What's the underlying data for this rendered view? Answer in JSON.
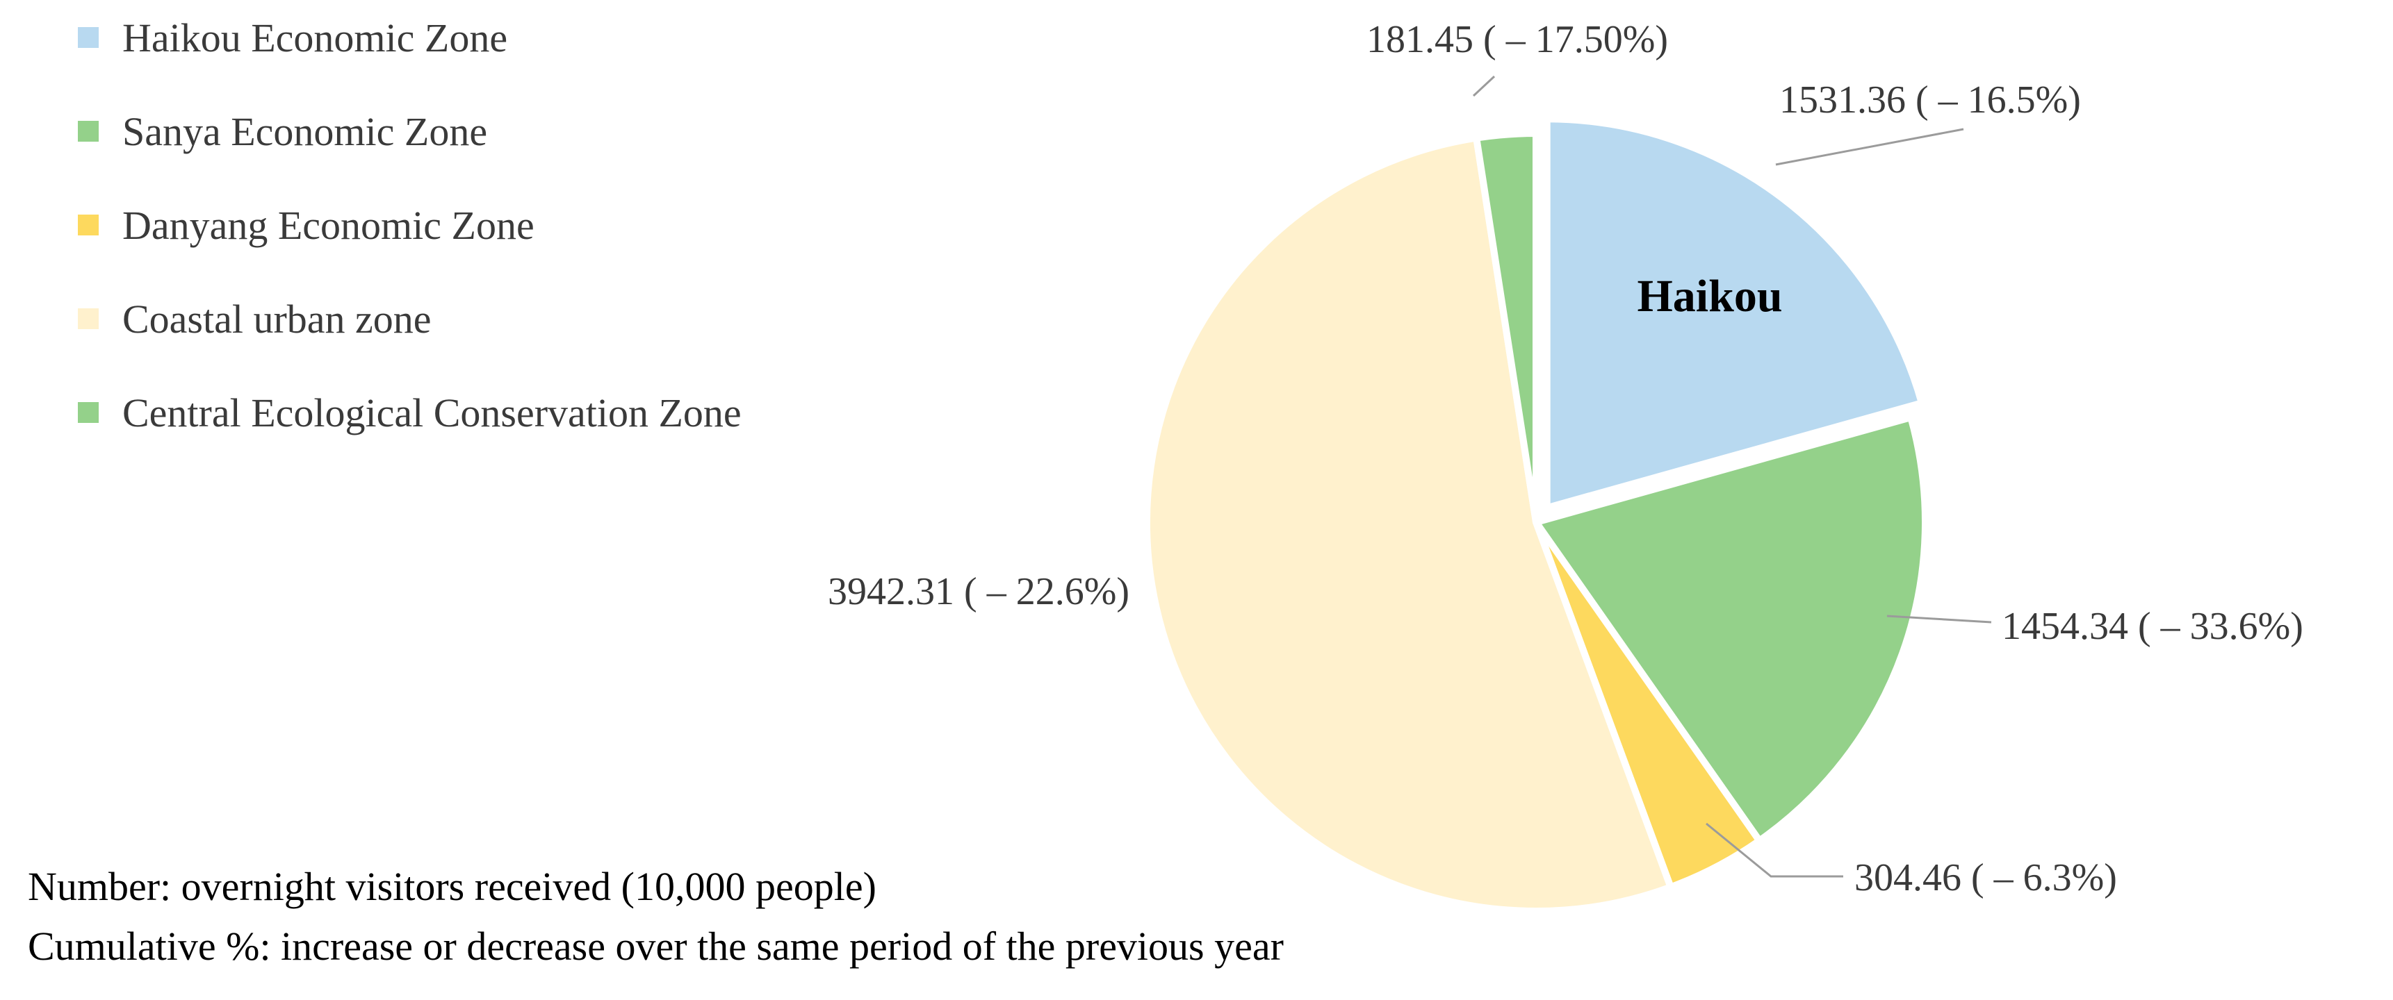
{
  "chart_data": {
    "type": "pie",
    "title": "",
    "inner_label": "Haikou",
    "slices": [
      {
        "name": "Haikou Economic Zone",
        "value": 1531.36,
        "label": "1531.36 ( – 16.5%)",
        "color": "#b8d9f0",
        "exploded": true
      },
      {
        "name": "Sanya Economic Zone",
        "value": 1454.34,
        "label": "1454.34 ( – 33.6%)",
        "color": "#94d18a",
        "exploded": false
      },
      {
        "name": "Danyang Economic Zone",
        "value": 304.46,
        "label": "304.46 ( – 6.3%)",
        "color": "#fdd95e",
        "exploded": false
      },
      {
        "name": "Coastal urban zone",
        "value": 3942.31,
        "label": "3942.31 ( – 22.6%)",
        "color": "#fff1cd",
        "exploded": false
      },
      {
        "name": "Central Ecological Conservation Zone",
        "value": 181.45,
        "label": "181.45 ( – 17.50%)",
        "color": "#94d18a",
        "exploded": false
      }
    ],
    "legend_position": "top-left",
    "start": "12 o'clock",
    "direction": "clockwise",
    "notes": [
      "Number: overnight visitors received (10,000 people)",
      "Cumulative %: increase or decrease over the same period of the previous year"
    ]
  }
}
